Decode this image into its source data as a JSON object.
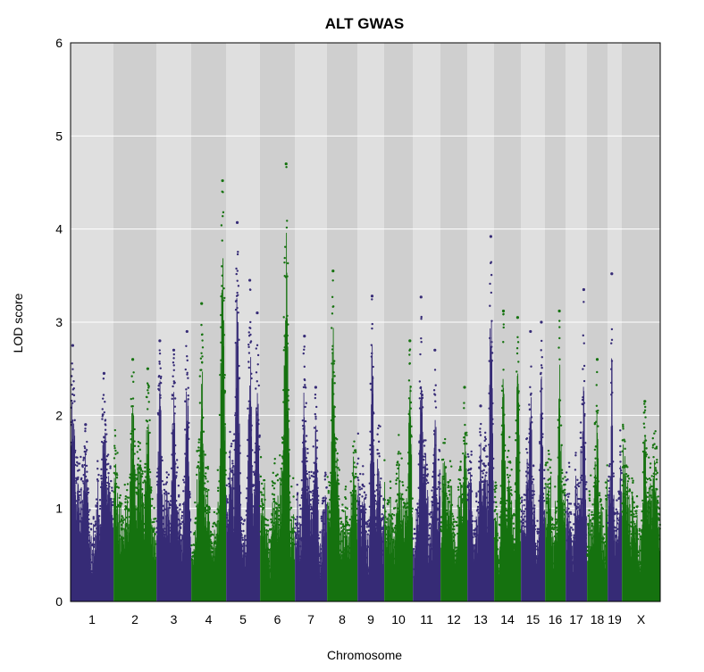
{
  "chart_data": {
    "type": "scatter",
    "title": "ALT GWAS",
    "xlabel": "Chromosome",
    "ylabel": "LOD score",
    "ylim": [
      0,
      6
    ],
    "yticks": [
      "0",
      "1",
      "2",
      "3",
      "4",
      "5",
      "6"
    ],
    "grid": "horizontal",
    "colors": {
      "odd": "#372c77",
      "even": "#167310",
      "band_light": "#dfdfdf",
      "band_dark": "#cfcfcf"
    },
    "chromosomes": [
      {
        "label": "1",
        "color": "odd",
        "peaks": [
          [
            0.05,
            2.75
          ],
          [
            0.35,
            1.9
          ],
          [
            0.78,
            2.45
          ]
        ]
      },
      {
        "label": "2",
        "color": "even",
        "peaks": [
          [
            0.45,
            2.6
          ],
          [
            0.8,
            2.5
          ]
        ]
      },
      {
        "label": "3",
        "color": "odd",
        "peaks": [
          [
            0.1,
            2.8
          ],
          [
            0.5,
            2.7
          ],
          [
            0.88,
            2.9
          ]
        ]
      },
      {
        "label": "4",
        "color": "even",
        "peaks": [
          [
            0.3,
            3.2
          ],
          [
            0.9,
            4.52
          ]
        ]
      },
      {
        "label": "5",
        "color": "odd",
        "peaks": [
          [
            0.33,
            4.07
          ],
          [
            0.7,
            3.45
          ],
          [
            0.92,
            3.1
          ]
        ]
      },
      {
        "label": "6",
        "color": "even",
        "peaks": [
          [
            0.75,
            4.7
          ]
        ]
      },
      {
        "label": "7",
        "color": "odd",
        "peaks": [
          [
            0.3,
            2.85
          ],
          [
            0.65,
            2.3
          ]
        ]
      },
      {
        "label": "8",
        "color": "even",
        "peaks": [
          [
            0.2,
            3.55
          ]
        ]
      },
      {
        "label": "9",
        "color": "odd",
        "peaks": [
          [
            0.55,
            3.28
          ]
        ]
      },
      {
        "label": "10",
        "color": "even",
        "peaks": [
          [
            0.9,
            2.8
          ]
        ]
      },
      {
        "label": "11",
        "color": "odd",
        "peaks": [
          [
            0.3,
            3.27
          ],
          [
            0.8,
            2.7
          ]
        ]
      },
      {
        "label": "12",
        "color": "even",
        "peaks": [
          [
            0.9,
            2.3
          ]
        ]
      },
      {
        "label": "13",
        "color": "odd",
        "peaks": [
          [
            0.5,
            2.1
          ],
          [
            0.88,
            3.92
          ]
        ]
      },
      {
        "label": "14",
        "color": "even",
        "peaks": [
          [
            0.35,
            3.12
          ],
          [
            0.88,
            3.05
          ]
        ]
      },
      {
        "label": "15",
        "color": "odd",
        "peaks": [
          [
            0.4,
            2.9
          ],
          [
            0.85,
            3.0
          ]
        ]
      },
      {
        "label": "16",
        "color": "even",
        "peaks": [
          [
            0.7,
            3.12
          ]
        ]
      },
      {
        "label": "17",
        "color": "odd",
        "peaks": [
          [
            0.85,
            3.35
          ]
        ]
      },
      {
        "label": "18",
        "color": "even",
        "peaks": [
          [
            0.5,
            2.6
          ]
        ]
      },
      {
        "label": "19",
        "color": "odd",
        "peaks": [
          [
            0.3,
            3.52
          ]
        ]
      },
      {
        "label": "X",
        "color": "even",
        "peaks": [
          [
            0.6,
            2.15
          ]
        ]
      }
    ]
  }
}
